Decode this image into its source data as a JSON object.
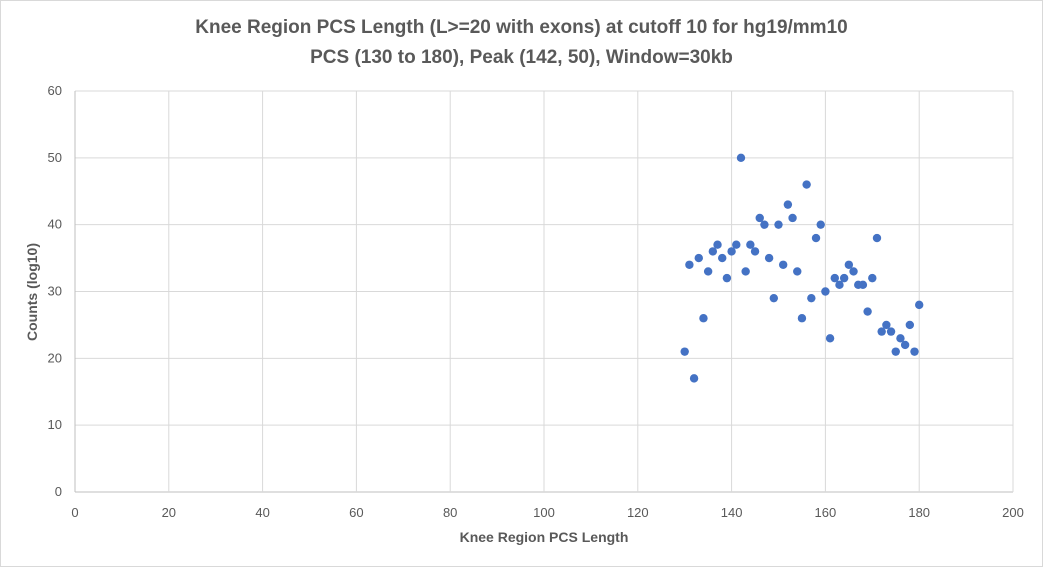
{
  "chart_data": {
    "type": "scatter",
    "title": "Knee Region PCS Length (L>=20 with exons) at cutoff 10 for hg19/mm10",
    "subtitle": "PCS (130 to 180), Peak (142, 50), Window=30kb",
    "xlabel": "Knee Region PCS Length",
    "ylabel": "Counts (log10)",
    "xlim": [
      0,
      200
    ],
    "ylim": [
      0,
      60
    ],
    "xticks": [
      0,
      20,
      40,
      60,
      80,
      100,
      120,
      140,
      160,
      180,
      200
    ],
    "yticks": [
      0,
      10,
      20,
      30,
      40,
      50,
      60
    ],
    "grid": true,
    "legend": "none",
    "marker_color": "#4472c4",
    "points": [
      [
        130,
        21
      ],
      [
        131,
        34
      ],
      [
        132,
        17
      ],
      [
        133,
        35
      ],
      [
        134,
        26
      ],
      [
        135,
        33
      ],
      [
        136,
        36
      ],
      [
        137,
        37
      ],
      [
        138,
        35
      ],
      [
        139,
        32
      ],
      [
        140,
        36
      ],
      [
        141,
        37
      ],
      [
        142,
        50
      ],
      [
        143,
        33
      ],
      [
        144,
        37
      ],
      [
        145,
        36
      ],
      [
        146,
        41
      ],
      [
        147,
        40
      ],
      [
        148,
        35
      ],
      [
        149,
        29
      ],
      [
        150,
        40
      ],
      [
        151,
        34
      ],
      [
        152,
        43
      ],
      [
        153,
        41
      ],
      [
        154,
        33
      ],
      [
        155,
        26
      ],
      [
        156,
        46
      ],
      [
        157,
        29
      ],
      [
        158,
        38
      ],
      [
        159,
        40
      ],
      [
        160,
        30
      ],
      [
        161,
        23
      ],
      [
        162,
        32
      ],
      [
        163,
        31
      ],
      [
        164,
        32
      ],
      [
        165,
        34
      ],
      [
        166,
        33
      ],
      [
        167,
        31
      ],
      [
        168,
        31
      ],
      [
        169,
        27
      ],
      [
        170,
        32
      ],
      [
        171,
        38
      ],
      [
        172,
        24
      ],
      [
        173,
        25
      ],
      [
        174,
        24
      ],
      [
        175,
        21
      ],
      [
        176,
        23
      ],
      [
        177,
        22
      ],
      [
        178,
        25
      ],
      [
        179,
        21
      ],
      [
        180,
        28
      ]
    ]
  }
}
